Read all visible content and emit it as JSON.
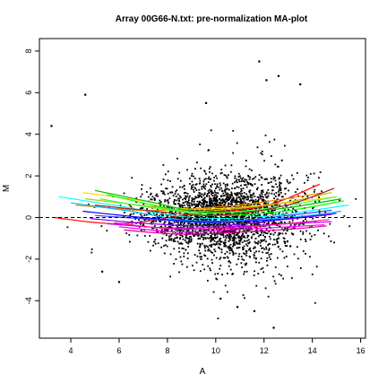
{
  "chart_data": {
    "type": "scatter",
    "title": "Array 00G66-N.txt: pre-normalization MA-plot",
    "xlabel": "A",
    "ylabel": "M",
    "xlim": [
      2.7,
      16.2
    ],
    "ylim": [
      -5.8,
      8.6
    ],
    "x_ticks": [
      4,
      6,
      8,
      10,
      12,
      14,
      16
    ],
    "y_ticks": [
      -4,
      -2,
      0,
      2,
      4,
      6,
      8
    ],
    "grid": false,
    "legend": "none",
    "reference_line": {
      "y": 0,
      "style": "dashed"
    },
    "scatter_summary": {
      "n_points": 2600,
      "center_A": 10.3,
      "spread_A": 1.6,
      "center_M": 0.0,
      "spread_M_low_A": 0.55,
      "spread_M_high_A": 1.1,
      "outliers": [
        [
          3.2,
          4.4
        ],
        [
          4.6,
          5.9
        ],
        [
          11.8,
          7.5
        ],
        [
          12.1,
          6.6
        ],
        [
          13.5,
          6.4
        ],
        [
          12.6,
          6.8
        ],
        [
          9.6,
          5.5
        ],
        [
          10.9,
          -4.3
        ],
        [
          11.6,
          -4.5
        ],
        [
          12.4,
          -5.3
        ],
        [
          5.3,
          -2.6
        ],
        [
          6.0,
          -3.1
        ],
        [
          10.2,
          -3.9
        ]
      ]
    },
    "loess_curves": [
      {
        "color": "#ff0000",
        "values": [
          [
            3.3,
            0.0
          ],
          [
            6.0,
            -0.3
          ],
          [
            9.0,
            0.15
          ],
          [
            12.0,
            0.55
          ],
          [
            14.3,
            1.6
          ]
        ]
      },
      {
        "color": "#ff7f00",
        "values": [
          [
            4.2,
            0.6
          ],
          [
            7.0,
            0.35
          ],
          [
            9.5,
            0.45
          ],
          [
            12.0,
            0.75
          ],
          [
            14.5,
            1.2
          ]
        ]
      },
      {
        "color": "#ffd700",
        "values": [
          [
            4.5,
            1.2
          ],
          [
            7.0,
            0.8
          ],
          [
            9.0,
            0.4
          ],
          [
            12.0,
            0.6
          ],
          [
            15.0,
            1.0
          ]
        ]
      },
      {
        "color": "#c0c000",
        "values": [
          [
            4.6,
            0.9
          ],
          [
            7.2,
            0.55
          ],
          [
            9.3,
            0.3
          ],
          [
            12.5,
            0.65
          ],
          [
            14.8,
            1.2
          ]
        ]
      },
      {
        "color": "#00c000",
        "values": [
          [
            5.0,
            1.3
          ],
          [
            7.5,
            0.7
          ],
          [
            9.5,
            0.25
          ],
          [
            12.5,
            0.4
          ],
          [
            15.2,
            0.9
          ]
        ]
      },
      {
        "color": "#00ff00",
        "values": [
          [
            5.5,
            1.1
          ],
          [
            7.8,
            0.5
          ],
          [
            9.8,
            0.1
          ],
          [
            12.8,
            0.3
          ],
          [
            15.3,
            0.8
          ]
        ]
      },
      {
        "color": "#40ff40",
        "values": [
          [
            5.2,
            0.9
          ],
          [
            7.5,
            0.45
          ],
          [
            9.6,
            0.2
          ],
          [
            12.2,
            0.45
          ],
          [
            15.0,
            1.0
          ]
        ]
      },
      {
        "color": "#00ffff",
        "values": [
          [
            3.5,
            1.0
          ],
          [
            6.0,
            0.55
          ],
          [
            9.0,
            0.0
          ],
          [
            12.0,
            0.05
          ],
          [
            15.5,
            0.6
          ]
        ]
      },
      {
        "color": "#00bfff",
        "values": [
          [
            4.0,
            0.7
          ],
          [
            6.5,
            0.3
          ],
          [
            9.0,
            -0.15
          ],
          [
            12.5,
            -0.05
          ],
          [
            15.2,
            0.3
          ]
        ]
      },
      {
        "color": "#0000ff",
        "values": [
          [
            4.5,
            0.3
          ],
          [
            7.0,
            0.0
          ],
          [
            9.5,
            -0.2
          ],
          [
            12.5,
            -0.1
          ],
          [
            15.0,
            0.2
          ]
        ]
      },
      {
        "color": "#4040ff",
        "values": [
          [
            5.0,
            0.1
          ],
          [
            7.5,
            -0.1
          ],
          [
            10.0,
            -0.25
          ],
          [
            13.0,
            0.1
          ],
          [
            14.8,
            0.35
          ]
        ]
      },
      {
        "color": "#8000ff",
        "values": [
          [
            4.8,
            -0.05
          ],
          [
            7.3,
            -0.3
          ],
          [
            10.0,
            -0.4
          ],
          [
            12.8,
            -0.1
          ],
          [
            14.8,
            0.15
          ]
        ]
      },
      {
        "color": "#c000ff",
        "values": [
          [
            5.5,
            -0.3
          ],
          [
            8.0,
            -0.5
          ],
          [
            10.5,
            -0.45
          ],
          [
            13.0,
            -0.3
          ],
          [
            14.8,
            -0.2
          ]
        ]
      },
      {
        "color": "#ff00ff",
        "values": [
          [
            6.0,
            -0.45
          ],
          [
            8.5,
            -0.7
          ],
          [
            10.5,
            -0.6
          ],
          [
            13.0,
            -0.45
          ],
          [
            14.5,
            -0.35
          ]
        ]
      },
      {
        "color": "#e000a0",
        "values": [
          [
            6.2,
            -0.6
          ],
          [
            8.5,
            -0.8
          ],
          [
            11.0,
            -0.7
          ],
          [
            13.2,
            -0.55
          ],
          [
            14.6,
            -0.4
          ]
        ]
      },
      {
        "color": "#ff1493",
        "values": [
          [
            5.8,
            -0.25
          ],
          [
            8.2,
            -0.55
          ],
          [
            10.8,
            -0.5
          ],
          [
            13.3,
            -0.25
          ],
          [
            14.7,
            -0.1
          ]
        ]
      },
      {
        "color": "#a52a2a",
        "values": [
          [
            5.0,
            0.6
          ],
          [
            7.5,
            0.3
          ],
          [
            10.0,
            0.1
          ],
          [
            12.8,
            0.55
          ],
          [
            14.9,
            1.4
          ]
        ]
      }
    ]
  }
}
